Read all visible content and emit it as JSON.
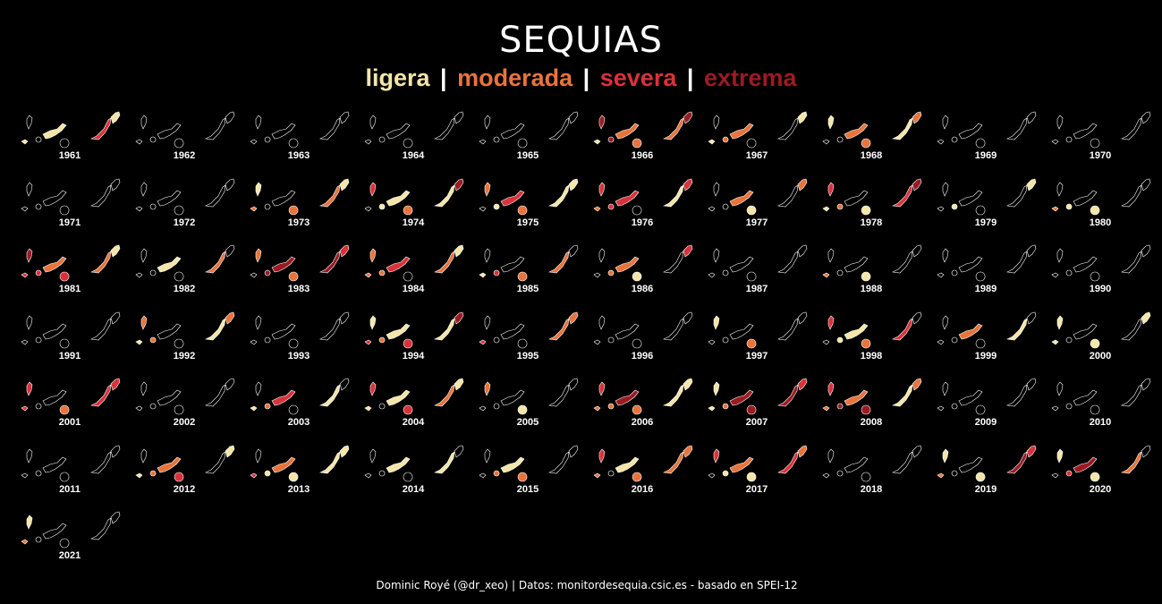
{
  "title": "SEQUIAS",
  "legend": [
    {
      "label": "ligera",
      "color": "#f3e6a8"
    },
    {
      "label": "moderada",
      "color": "#e8743b"
    },
    {
      "label": "severa",
      "color": "#d9323a"
    },
    {
      "label": "extrema",
      "color": "#9b1b22"
    }
  ],
  "legend_separator": "|",
  "years": [
    "1961",
    "1962",
    "1963",
    "1964",
    "1965",
    "1966",
    "1967",
    "1968",
    "1969",
    "1970",
    "1971",
    "1972",
    "1973",
    "1974",
    "1975",
    "1976",
    "1977",
    "1978",
    "1979",
    "1980",
    "1981",
    "1982",
    "1983",
    "1984",
    "1985",
    "1986",
    "1987",
    "1988",
    "1989",
    "1990",
    "1991",
    "1992",
    "1993",
    "1994",
    "1995",
    "1996",
    "1997",
    "1998",
    "1999",
    "2000",
    "2001",
    "2002",
    "2003",
    "2004",
    "2005",
    "2006",
    "2007",
    "2008",
    "2009",
    "2010",
    "2011",
    "2012",
    "2013",
    "2014",
    "2015",
    "2016",
    "2017",
    "2018",
    "2019",
    "2020",
    "2021"
  ],
  "drought_level": [
    2,
    0,
    0,
    0,
    0,
    3,
    1,
    1,
    0,
    0,
    0,
    0,
    2,
    3,
    3,
    2,
    1,
    3,
    1,
    1,
    3,
    1,
    3,
    2,
    2,
    2,
    0,
    1,
    0,
    0,
    0,
    1,
    0,
    3,
    2,
    0,
    1,
    2,
    1,
    1,
    2,
    0,
    2,
    2,
    1,
    3,
    3,
    3,
    0,
    0,
    0,
    2,
    3,
    1,
    1,
    2,
    3,
    0,
    3,
    3,
    2
  ],
  "caption": "Dominic Royé (@dr_xeo) | Datos: monitordesequia.csic.es - basado en SPEI-12"
}
